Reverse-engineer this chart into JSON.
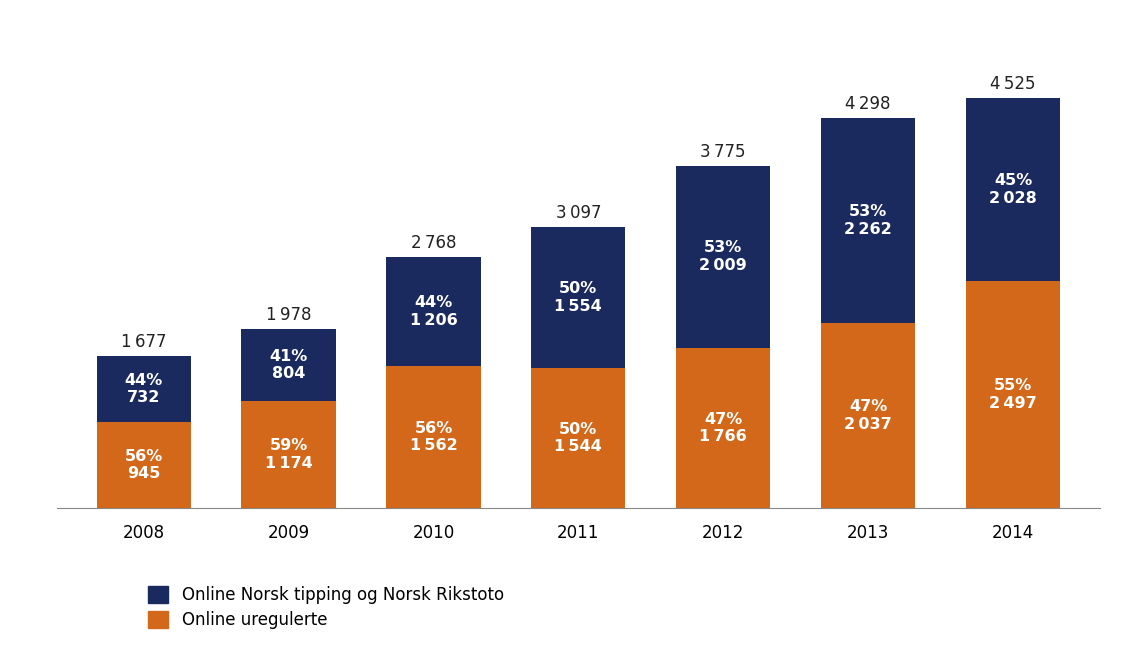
{
  "years": [
    "2008",
    "2009",
    "2010",
    "2011",
    "2012",
    "2013",
    "2014"
  ],
  "norsk_values": [
    732,
    804,
    1206,
    1554,
    2009,
    2262,
    2028
  ],
  "uregulerte_values": [
    945,
    1174,
    1562,
    1544,
    1766,
    2037,
    2497
  ],
  "totals": [
    1677,
    1978,
    2768,
    3097,
    3775,
    4298,
    4525
  ],
  "norsk_pcts": [
    "44%",
    "41%",
    "44%",
    "50%",
    "53%",
    "53%",
    "45%"
  ],
  "uregulerte_pcts": [
    "56%",
    "59%",
    "56%",
    "50%",
    "47%",
    "47%",
    "55%"
  ],
  "norsk_color": "#1b2a5e",
  "uregulerte_color": "#d4681a",
  "bar_width": 0.65,
  "legend_norsk": "Online Norsk tipping og Norsk Rikstoto",
  "legend_ureg": "Online uregulerte",
  "background_color": "#ffffff",
  "text_color_white": "#ffffff",
  "total_label_color": "#222222",
  "ylim": [
    0,
    5100
  ],
  "label_fontsize": 11.5,
  "total_fontsize": 12,
  "legend_fontsize": 12,
  "tick_fontsize": 12,
  "xlim_left": -0.6,
  "xlim_right": 6.6
}
